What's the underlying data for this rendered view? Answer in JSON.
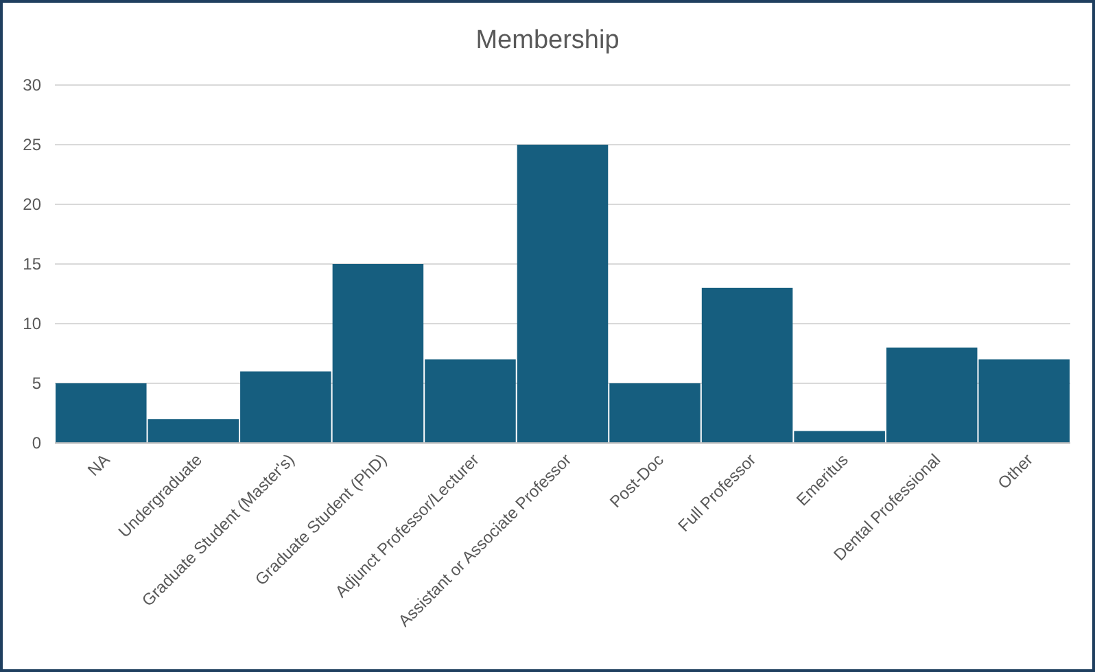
{
  "chart_data": {
    "type": "bar",
    "title": "Membership",
    "categories": [
      "NA",
      "Undergraduate",
      "Graduate Student (Master's)",
      "Graduate Student (PhD)",
      "Adjunct Professor/Lecturer",
      "Assistant or Associate Professor",
      "Post-Doc",
      "Full Professor",
      "Emeritus",
      "Dental Professional",
      "Other"
    ],
    "values": [
      5,
      2,
      6,
      15,
      7,
      25,
      5,
      13,
      1,
      8,
      7
    ],
    "color": "#165e7f",
    "ylim": [
      0,
      30
    ],
    "yticks": [
      0,
      5,
      10,
      15,
      20,
      25,
      30
    ],
    "grid": "y"
  }
}
